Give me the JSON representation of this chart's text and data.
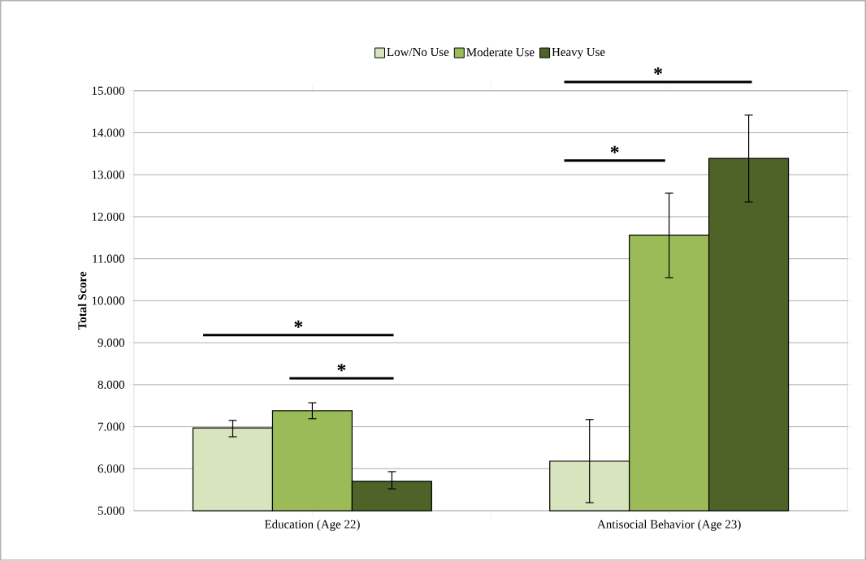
{
  "chart_data": {
    "type": "bar",
    "ylabel": "Total Score",
    "categories": [
      "Education (Age 22)",
      "Antisocial Behavior (Age 23)"
    ],
    "series": [
      {
        "name": "Low/No Use",
        "color": "#d7e4bd",
        "values": [
          6.97,
          6.18
        ],
        "errors": [
          [
            6.76,
            7.15
          ],
          [
            5.19,
            7.17
          ]
        ]
      },
      {
        "name": "Moderate Use",
        "color": "#9bbb59",
        "values": [
          7.38,
          11.56
        ],
        "errors": [
          [
            7.19,
            7.57
          ],
          [
            10.55,
            12.56
          ]
        ]
      },
      {
        "name": "Heavy Use",
        "color": "#4f6228",
        "values": [
          5.7,
          13.39
        ],
        "errors": [
          [
            5.52,
            5.93
          ],
          [
            12.35,
            14.42
          ]
        ]
      }
    ],
    "ylim": [
      5,
      15
    ],
    "yticks": [
      {
        "value": 5,
        "label": "5.000"
      },
      {
        "value": 6,
        "label": "6.000"
      },
      {
        "value": 7,
        "label": "7.000"
      },
      {
        "value": 8,
        "label": "8.000"
      },
      {
        "value": 9,
        "label": "9.000"
      },
      {
        "value": 10,
        "label": "10.000"
      },
      {
        "value": 11,
        "label": "11.000"
      },
      {
        "value": 12,
        "label": "12.000"
      },
      {
        "value": 13,
        "label": "13.000"
      },
      {
        "value": 14,
        "label": "14.000"
      },
      {
        "value": 15,
        "label": "15.000"
      }
    ],
    "grid": "y",
    "legend": "top",
    "annotations": [
      "*",
      "*",
      "*",
      "*"
    ]
  }
}
